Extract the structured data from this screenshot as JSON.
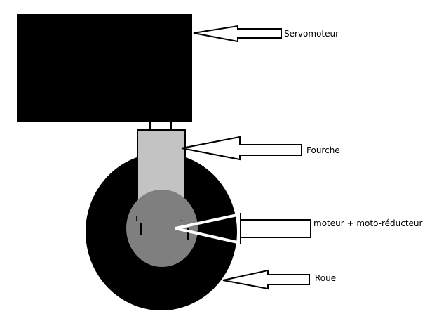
{
  "labels": {
    "servo": "Servomoteur",
    "fork": "Fourche",
    "motor": "moteur + moto-réducteur",
    "wheel": "Roue"
  },
  "terminals": {
    "plus": "+",
    "minus": "-"
  },
  "colors": {
    "servo_body": "#000000",
    "wheel": "#000000",
    "fork": "#c3c3c3",
    "motor_hub": "#7f7f7f",
    "arrow_fill": "#ffffff",
    "background": "#ffffff"
  }
}
